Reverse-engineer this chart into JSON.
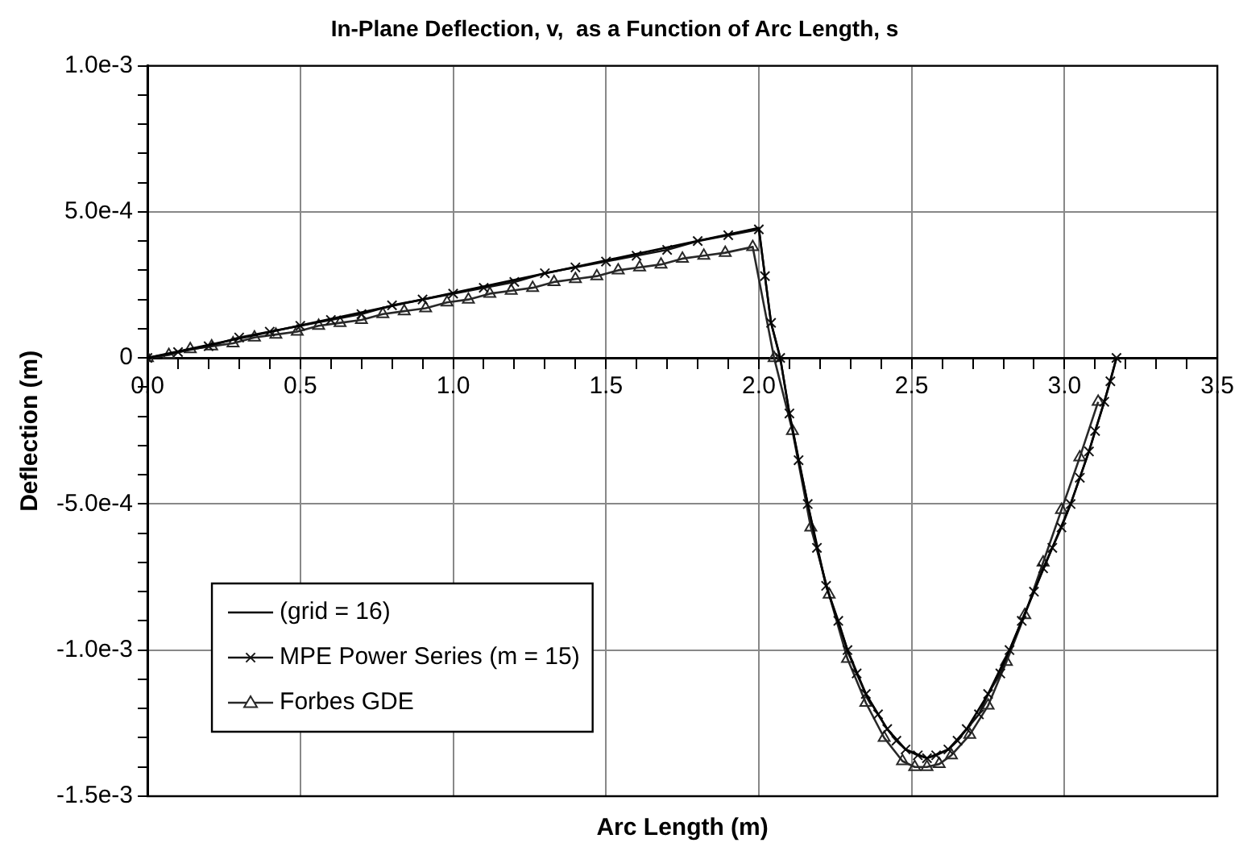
{
  "chart_data": {
    "type": "line",
    "title": "In-Plane Deflection, v,  as a Function of Arc Length, s",
    "xlabel": "Arc Length (m)",
    "ylabel": "Deflection (m)",
    "xlim": [
      0,
      3.5
    ],
    "ylim": [
      -0.0015,
      0.001
    ],
    "xticks": [
      {
        "value": 0,
        "label": "0.0"
      },
      {
        "value": 0.1,
        "label": null
      },
      {
        "value": 0.2,
        "label": null
      },
      {
        "value": 0.3,
        "label": null
      },
      {
        "value": 0.4,
        "label": null
      },
      {
        "value": 0.5,
        "label": "0.5"
      },
      {
        "value": 0.6,
        "label": null
      },
      {
        "value": 0.7,
        "label": null
      },
      {
        "value": 0.8,
        "label": null
      },
      {
        "value": 0.9,
        "label": null
      },
      {
        "value": 1,
        "label": "1.0"
      },
      {
        "value": 1.1,
        "label": null
      },
      {
        "value": 1.2,
        "label": null
      },
      {
        "value": 1.3,
        "label": null
      },
      {
        "value": 1.4,
        "label": null
      },
      {
        "value": 1.5,
        "label": "1.5"
      },
      {
        "value": 1.6,
        "label": null
      },
      {
        "value": 1.7,
        "label": null
      },
      {
        "value": 1.8,
        "label": null
      },
      {
        "value": 1.9,
        "label": null
      },
      {
        "value": 2,
        "label": "2.0"
      },
      {
        "value": 2.1,
        "label": null
      },
      {
        "value": 2.2,
        "label": null
      },
      {
        "value": 2.3,
        "label": null
      },
      {
        "value": 2.4,
        "label": null
      },
      {
        "value": 2.5,
        "label": "2.5"
      },
      {
        "value": 2.6,
        "label": null
      },
      {
        "value": 2.7,
        "label": null
      },
      {
        "value": 2.8,
        "label": null
      },
      {
        "value": 2.9,
        "label": null
      },
      {
        "value": 3,
        "label": "3.0"
      },
      {
        "value": 3.1,
        "label": null
      },
      {
        "value": 3.2,
        "label": null
      },
      {
        "value": 3.3,
        "label": null
      },
      {
        "value": 3.4,
        "label": null
      },
      {
        "value": 3.5,
        "label": "3.5"
      }
    ],
    "yticks": [
      {
        "value": -0.0015,
        "label": "-1.5e-3"
      },
      {
        "value": -0.0014,
        "label": null
      },
      {
        "value": -0.0013,
        "label": null
      },
      {
        "value": -0.0012,
        "label": null
      },
      {
        "value": -0.0011,
        "label": null
      },
      {
        "value": -0.001,
        "label": "-1.0e-3"
      },
      {
        "value": -0.0009,
        "label": null
      },
      {
        "value": -0.0008,
        "label": null
      },
      {
        "value": -0.0007,
        "label": null
      },
      {
        "value": -0.0006,
        "label": null
      },
      {
        "value": -0.0005,
        "label": "-5.0e-4"
      },
      {
        "value": -0.0004,
        "label": null
      },
      {
        "value": -0.0003,
        "label": null
      },
      {
        "value": -0.0002,
        "label": null
      },
      {
        "value": -0.0001,
        "label": null
      },
      {
        "value": 0,
        "label": "0"
      },
      {
        "value": 0.0001,
        "label": null
      },
      {
        "value": 0.0002,
        "label": null
      },
      {
        "value": 0.0003,
        "label": null
      },
      {
        "value": 0.0004,
        "label": null
      },
      {
        "value": 0.0005,
        "label": "5.0e-4"
      },
      {
        "value": 0.0006,
        "label": null
      },
      {
        "value": 0.0007,
        "label": null
      },
      {
        "value": 0.0008,
        "label": null
      },
      {
        "value": 0.0009,
        "label": null
      },
      {
        "value": 0.001,
        "label": "1.0e-3"
      }
    ],
    "grid": true,
    "legend": "bottom left",
    "line_style": "solid",
    "series": [
      {
        "name": "(grid = 16)",
        "color": "#000000",
        "marker": "none",
        "x": [
          0,
          2.0,
          2.02,
          2.04,
          2.07,
          2.1,
          2.16,
          2.22,
          2.29,
          2.35,
          2.42,
          2.48,
          2.55,
          2.62,
          2.68,
          2.75,
          2.82,
          2.9,
          2.96,
          3.02,
          3.08,
          3.13,
          3.17
        ],
        "values": [
          0,
          0.000445,
          0.00028,
          0.00012,
          0,
          -0.00019,
          -0.0005,
          -0.00078,
          -0.001,
          -0.00115,
          -0.00127,
          -0.00134,
          -0.00137,
          -0.00134,
          -0.00127,
          -0.00115,
          -0.001,
          -0.0008,
          -0.00065,
          -0.0005,
          -0.00032,
          -0.00015,
          0
        ]
      },
      {
        "name": "MPE Power Series (m = 15)",
        "color": "#141414",
        "marker": "cross",
        "x": [
          0,
          0.1,
          0.2,
          0.3,
          0.4,
          0.5,
          0.6,
          0.7,
          0.8,
          0.9,
          1.0,
          1.1,
          1.2,
          1.3,
          1.4,
          1.5,
          1.6,
          1.7,
          1.8,
          1.9,
          2.0,
          2.02,
          2.04,
          2.07,
          2.1,
          2.13,
          2.16,
          2.19,
          2.22,
          2.26,
          2.29,
          2.32,
          2.35,
          2.39,
          2.42,
          2.45,
          2.48,
          2.52,
          2.55,
          2.58,
          2.62,
          2.65,
          2.68,
          2.72,
          2.75,
          2.79,
          2.82,
          2.86,
          2.9,
          2.93,
          2.96,
          2.99,
          3.02,
          3.05,
          3.08,
          3.1,
          3.13,
          3.15,
          3.17
        ],
        "values": [
          0,
          2e-05,
          4e-05,
          7e-05,
          9e-05,
          0.00011,
          0.00013,
          0.00015,
          0.00018,
          0.0002,
          0.00022,
          0.00024,
          0.00026,
          0.00029,
          0.00031,
          0.00033,
          0.00035,
          0.00037,
          0.0004,
          0.00042,
          0.00044,
          0.00028,
          0.00012,
          0,
          -0.00019,
          -0.00035,
          -0.0005,
          -0.00065,
          -0.00078,
          -0.0009,
          -0.001,
          -0.00108,
          -0.00115,
          -0.00122,
          -0.00127,
          -0.00131,
          -0.00134,
          -0.00136,
          -0.00137,
          -0.00136,
          -0.00134,
          -0.00131,
          -0.00127,
          -0.00122,
          -0.00115,
          -0.00108,
          -0.001,
          -0.0009,
          -0.0008,
          -0.00072,
          -0.00065,
          -0.00058,
          -0.0005,
          -0.00041,
          -0.00032,
          -0.00025,
          -0.00015,
          -8e-05,
          0
        ]
      },
      {
        "name": "Forbes GDE",
        "color": "#282828",
        "marker": "triangle",
        "x": [
          0,
          0.07,
          0.14,
          0.21,
          0.28,
          0.35,
          0.42,
          0.49,
          0.56,
          0.63,
          0.7,
          0.77,
          0.84,
          0.91,
          0.98,
          1.05,
          1.12,
          1.19,
          1.26,
          1.33,
          1.4,
          1.47,
          1.54,
          1.61,
          1.68,
          1.75,
          1.82,
          1.89,
          1.98,
          2.05,
          2.11,
          2.17,
          2.23,
          2.29,
          2.35,
          2.41,
          2.47,
          2.51,
          2.55,
          2.59,
          2.63,
          2.69,
          2.75,
          2.81,
          2.87,
          2.93,
          2.99,
          3.05,
          3.11
        ],
        "values": [
          0,
          1e-05,
          3e-05,
          4e-05,
          5e-05,
          7e-05,
          8e-05,
          9e-05,
          0.00011,
          0.00012,
          0.00013,
          0.00015,
          0.00016,
          0.00017,
          0.00019,
          0.0002,
          0.00022,
          0.00023,
          0.00024,
          0.00026,
          0.00027,
          0.00028,
          0.0003,
          0.00031,
          0.00032,
          0.00034,
          0.00035,
          0.00036,
          0.00038,
          0,
          -0.00025,
          -0.00058,
          -0.00081,
          -0.00103,
          -0.00118,
          -0.0013,
          -0.00138,
          -0.0014,
          -0.0014,
          -0.00139,
          -0.00136,
          -0.00129,
          -0.00119,
          -0.00104,
          -0.00088,
          -0.0007,
          -0.00052,
          -0.00034,
          -0.00015
        ]
      }
    ]
  }
}
